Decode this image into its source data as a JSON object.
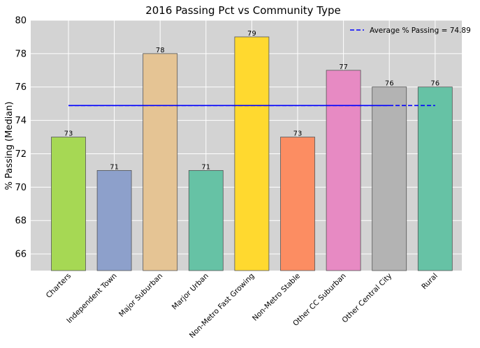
{
  "chart_data": {
    "type": "bar",
    "title": "2016 Passing Pct vs Community Type",
    "xlabel": "",
    "ylabel": "% Passing (Median)",
    "ylim": [
      65,
      80
    ],
    "yticks": [
      66,
      68,
      70,
      72,
      74,
      76,
      78,
      80
    ],
    "grid": true,
    "legend_position": "top-right",
    "categories": [
      "Charters",
      "Independent Town",
      "Major Suburban",
      "Marjor Urban",
      "Non-Metro Fast Growing",
      "Non-Metro Stable",
      "Other CC Suburban",
      "Other Central City",
      "Rural"
    ],
    "values": [
      73,
      71,
      78,
      71,
      79,
      73,
      77,
      76,
      76
    ],
    "bar_colors": [
      "#a6d854",
      "#8da0cb",
      "#e5c494",
      "#66c2a5",
      "#ffd92f",
      "#fc8d62",
      "#e78ac3",
      "#b3b3b3",
      "#66c2a5"
    ],
    "average": {
      "label": "Average % Passing = 74.89",
      "value": 74.89,
      "color": "#0000ff"
    }
  }
}
